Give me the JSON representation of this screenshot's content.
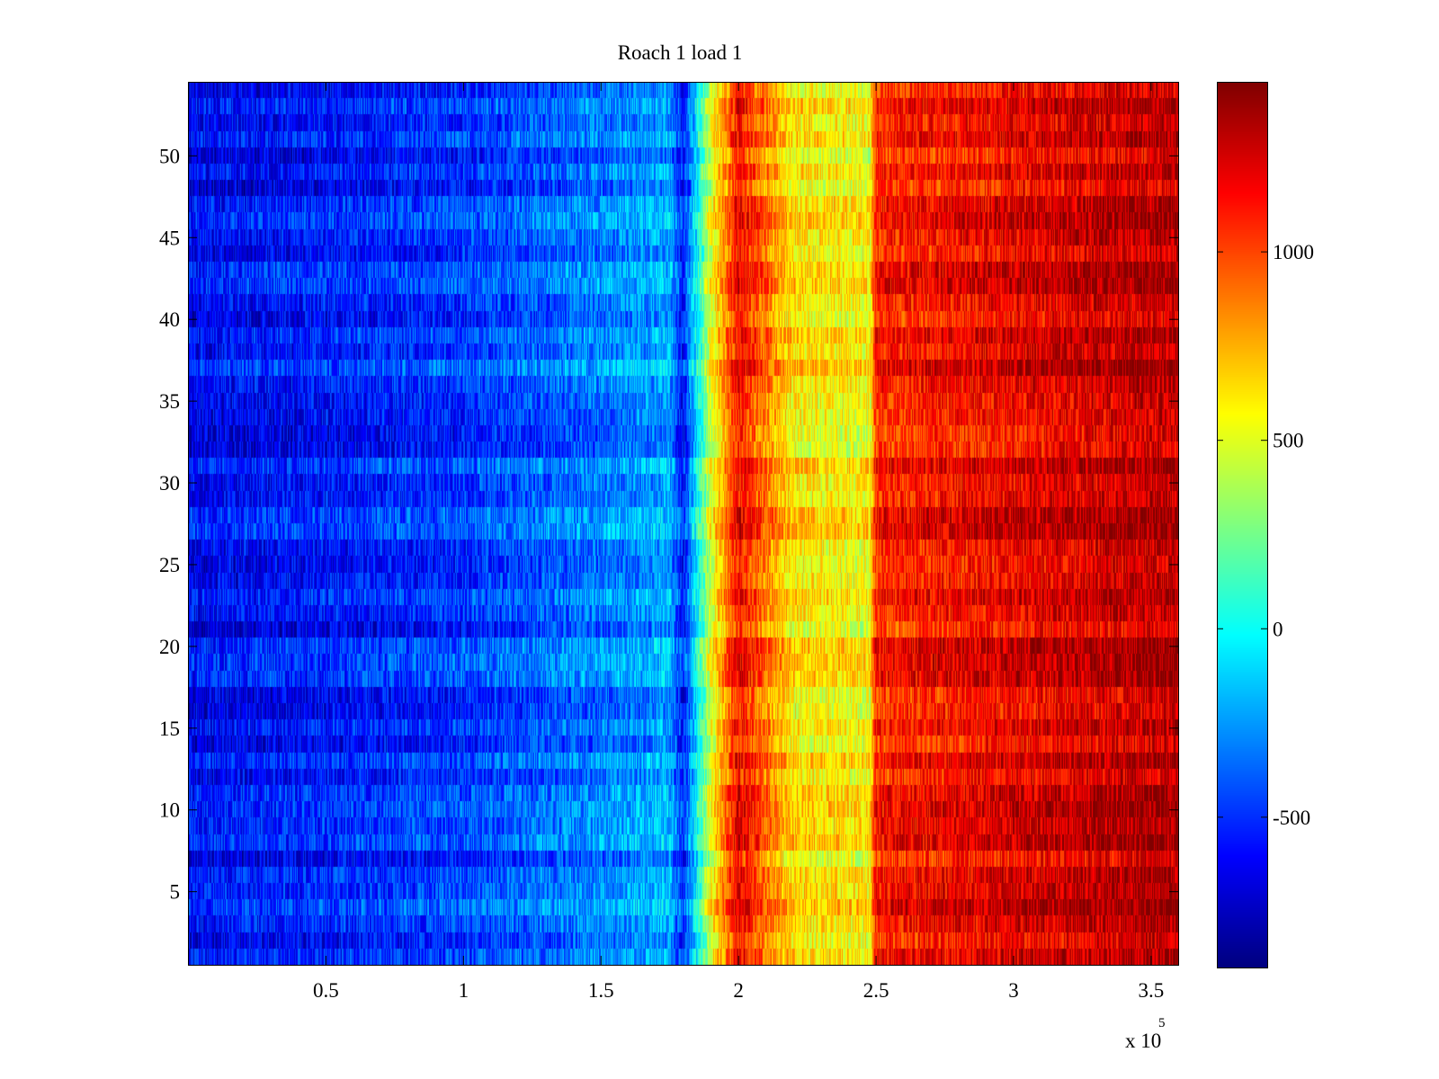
{
  "chart_data": {
    "type": "heatmap",
    "title": "Roach 1 load 1",
    "xlabel": "",
    "ylabel": "",
    "x_exponent_label": {
      "base": "x 10",
      "exponent": "5"
    },
    "xlim": [
      0,
      360000
    ],
    "ylim": [
      0.5,
      54.5
    ],
    "rows": 54,
    "x_ticks": [
      {
        "value": 50000,
        "label": "0.5"
      },
      {
        "value": 100000,
        "label": "1"
      },
      {
        "value": 150000,
        "label": "1.5"
      },
      {
        "value": 200000,
        "label": "2"
      },
      {
        "value": 250000,
        "label": "2.5"
      },
      {
        "value": 300000,
        "label": "3"
      },
      {
        "value": 350000,
        "label": "3.5"
      }
    ],
    "y_ticks": [
      {
        "value": 5,
        "label": "5"
      },
      {
        "value": 10,
        "label": "10"
      },
      {
        "value": 15,
        "label": "15"
      },
      {
        "value": 20,
        "label": "20"
      },
      {
        "value": 25,
        "label": "25"
      },
      {
        "value": 30,
        "label": "30"
      },
      {
        "value": 35,
        "label": "35"
      },
      {
        "value": 40,
        "label": "40"
      },
      {
        "value": 45,
        "label": "45"
      },
      {
        "value": 50,
        "label": "50"
      }
    ],
    "colorbar": {
      "colormap": "jet",
      "clim": [
        -900,
        1450
      ],
      "ticks": [
        {
          "value": -500,
          "label": "-500"
        },
        {
          "value": 0,
          "label": "0"
        },
        {
          "value": 500,
          "label": "500"
        },
        {
          "value": 1000,
          "label": "1000"
        }
      ]
    },
    "column_profile": {
      "x": [
        0,
        50000,
        100000,
        150000,
        175000,
        180000,
        190000,
        200000,
        220000,
        248000,
        250000,
        300000,
        360000
      ],
      "value": [
        -620,
        -560,
        -480,
        -320,
        -220,
        -560,
        480,
        1150,
        620,
        560,
        1080,
        1200,
        1330
      ]
    },
    "grid": false,
    "legend": "none"
  }
}
